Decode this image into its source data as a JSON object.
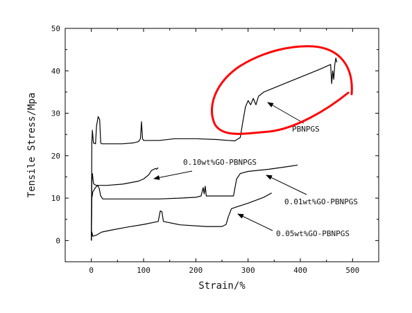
{
  "chart_data": {
    "type": "line",
    "xlabel": "Strain/%",
    "ylabel": "Tensile Stress/Mpa",
    "xlim": [
      -50,
      550
    ],
    "ylim": [
      -5,
      50
    ],
    "xticks": [
      0,
      100,
      200,
      300,
      400,
      500
    ],
    "yticks": [
      0,
      10,
      20,
      30,
      40,
      50
    ],
    "grid": false,
    "series": [
      {
        "name": "PBNPGS",
        "points": [
          [
            0,
            0
          ],
          [
            1,
            23
          ],
          [
            2,
            26
          ],
          [
            4,
            23
          ],
          [
            8,
            22.8
          ],
          [
            10,
            27
          ],
          [
            13,
            29.2
          ],
          [
            16,
            28.5
          ],
          [
            18,
            23
          ],
          [
            20,
            22.8
          ],
          [
            40,
            22.8
          ],
          [
            60,
            22.8
          ],
          [
            80,
            23
          ],
          [
            90,
            23.3
          ],
          [
            94,
            24
          ],
          [
            96,
            28
          ],
          [
            98,
            24
          ],
          [
            100,
            23.6
          ],
          [
            130,
            23.6
          ],
          [
            160,
            24
          ],
          [
            200,
            24
          ],
          [
            240,
            23.8
          ],
          [
            262,
            23.6
          ],
          [
            275,
            23.5
          ],
          [
            285,
            24.3
          ],
          [
            290,
            28
          ],
          [
            295,
            31.5
          ],
          [
            300,
            33
          ],
          [
            305,
            32
          ],
          [
            310,
            33.5
          ],
          [
            315,
            32
          ],
          [
            320,
            34
          ],
          [
            325,
            34.5
          ],
          [
            330,
            35
          ],
          [
            350,
            36
          ],
          [
            380,
            37.5
          ],
          [
            410,
            39
          ],
          [
            440,
            40.5
          ],
          [
            458,
            41.5
          ],
          [
            460,
            37
          ],
          [
            462,
            40
          ],
          [
            464,
            38
          ],
          [
            466,
            41.5
          ],
          [
            468,
            43
          ],
          [
            470,
            42
          ]
        ]
      },
      {
        "name": "0.10wt%GO-PBNPGS",
        "points": [
          [
            0,
            0
          ],
          [
            1,
            14
          ],
          [
            2,
            15.8
          ],
          [
            4,
            13.5
          ],
          [
            6,
            13.2
          ],
          [
            10,
            13
          ],
          [
            30,
            13
          ],
          [
            60,
            13.3
          ],
          [
            90,
            14
          ],
          [
            100,
            14.5
          ],
          [
            110,
            15.5
          ],
          [
            115,
            16.5
          ],
          [
            120,
            16.8
          ],
          [
            123,
            17
          ],
          [
            125,
            16.8
          ],
          [
            128,
            17.2
          ]
        ]
      },
      {
        "name": "0.01wt%GO-PBNPGS",
        "points": [
          [
            0,
            0
          ],
          [
            1,
            10
          ],
          [
            3,
            11.5
          ],
          [
            8,
            12.5
          ],
          [
            12,
            13
          ],
          [
            15,
            12.3
          ],
          [
            18,
            10.5
          ],
          [
            22,
            9.8
          ],
          [
            50,
            9.8
          ],
          [
            90,
            9.8
          ],
          [
            130,
            9.8
          ],
          [
            170,
            10
          ],
          [
            200,
            10.2
          ],
          [
            210,
            10.5
          ],
          [
            214,
            12.5
          ],
          [
            216,
            11
          ],
          [
            218,
            12.8
          ],
          [
            220,
            10.5
          ],
          [
            240,
            10.5
          ],
          [
            262,
            10.5
          ],
          [
            272,
            10.5
          ],
          [
            278,
            14.5
          ],
          [
            285,
            15.8
          ],
          [
            300,
            16.3
          ],
          [
            340,
            16.8
          ],
          [
            380,
            17.5
          ],
          [
            395,
            17.8
          ]
        ]
      },
      {
        "name": "0.05wt%GO-PBNPGS",
        "points": [
          [
            0,
            0
          ],
          [
            1,
            2
          ],
          [
            3,
            1
          ],
          [
            10,
            1.3
          ],
          [
            20,
            2
          ],
          [
            40,
            2.5
          ],
          [
            70,
            3.2
          ],
          [
            100,
            3.8
          ],
          [
            128,
            4.5
          ],
          [
            132,
            7
          ],
          [
            135,
            6.8
          ],
          [
            138,
            4.5
          ],
          [
            170,
            3.7
          ],
          [
            220,
            3.3
          ],
          [
            250,
            3.3
          ],
          [
            258,
            3.8
          ],
          [
            262,
            5.5
          ],
          [
            268,
            7.5
          ],
          [
            275,
            7.8
          ],
          [
            300,
            8.8
          ],
          [
            330,
            10.2
          ],
          [
            345,
            11.2
          ]
        ]
      }
    ],
    "annotations": [
      {
        "text": "PBNPGS",
        "series": 0
      },
      {
        "text": "0.10wt%GO-PBNPGS",
        "series": 1
      },
      {
        "text": "0.01wt%GO-PBNPGS",
        "series": 2
      },
      {
        "text": "0.05wt%GO-PBNPGS",
        "series": 3
      }
    ],
    "highlight": {
      "shape": "ellipse",
      "color": "#ff0000",
      "around_series": "PBNPGS"
    }
  }
}
